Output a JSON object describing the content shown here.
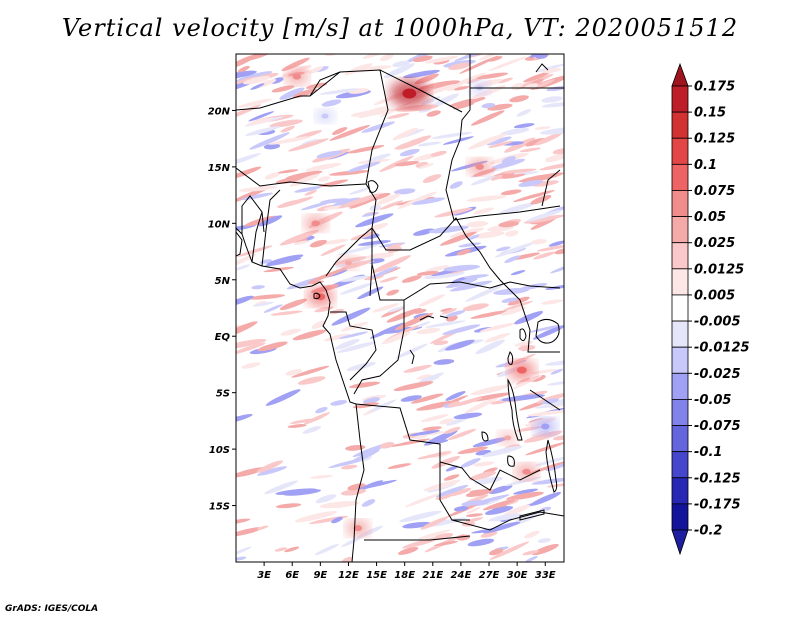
{
  "title": "Vertical velocity [m/s] at 1000hPa, VT: 2020051512",
  "credit": "GrADS: IGES/COLA",
  "map": {
    "lon_range": [
      0,
      35
    ],
    "lat_range": [
      -20,
      25
    ],
    "lon_ticks": [
      {
        "lon": 3,
        "label": "3E"
      },
      {
        "lon": 6,
        "label": "6E"
      },
      {
        "lon": 9,
        "label": "9E"
      },
      {
        "lon": 12,
        "label": "12E"
      },
      {
        "lon": 15,
        "label": "15E"
      },
      {
        "lon": 18,
        "label": "18E"
      },
      {
        "lon": 21,
        "label": "21E"
      },
      {
        "lon": 24,
        "label": "24E"
      },
      {
        "lon": 27,
        "label": "27E"
      },
      {
        "lon": 30,
        "label": "30E"
      },
      {
        "lon": 33,
        "label": "33E"
      }
    ],
    "lat_ticks": [
      {
        "lat": 20,
        "label": "20N"
      },
      {
        "lat": 15,
        "label": "15N"
      },
      {
        "lat": 10,
        "label": "10N"
      },
      {
        "lat": 5,
        "label": "5N"
      },
      {
        "lat": 0,
        "label": "EQ"
      },
      {
        "lat": -5,
        "label": "5S"
      },
      {
        "lat": -10,
        "label": "10S"
      },
      {
        "lat": -15,
        "label": "15S"
      }
    ],
    "hotspots": [
      {
        "lon": 18.5,
        "lat": 21.5,
        "level": 0.15
      },
      {
        "lon": 9.0,
        "lat": 3.5,
        "level": 0.075
      },
      {
        "lon": 30.5,
        "lat": -3.0,
        "level": 0.075
      },
      {
        "lon": 31.0,
        "lat": -12.0,
        "level": 0.05
      },
      {
        "lon": 13.0,
        "lat": -17.0,
        "level": 0.05
      },
      {
        "lon": 8.5,
        "lat": 10.0,
        "level": 0.05
      },
      {
        "lon": 26.0,
        "lat": 15.0,
        "level": 0.05
      },
      {
        "lon": 6.5,
        "lat": 23.0,
        "level": 0.05
      },
      {
        "lon": 12.0,
        "lat": 6.5,
        "level": 0.025
      },
      {
        "lon": 29.0,
        "lat": -9.0,
        "level": 0.025
      },
      {
        "lon": 33.0,
        "lat": -8.0,
        "level": -0.05
      },
      {
        "lon": 26.0,
        "lat": 22.0,
        "level": -0.025
      },
      {
        "lon": 9.5,
        "lat": 19.5,
        "level": -0.025
      }
    ]
  },
  "colorbar": {
    "levels": [
      {
        "label": "0.175",
        "color": "#a0141e"
      },
      {
        "label": "0.15",
        "color": "#be1e28"
      },
      {
        "label": "0.125",
        "color": "#d23232"
      },
      {
        "label": "0.1",
        "color": "#e24646"
      },
      {
        "label": "0.075",
        "color": "#ee6464"
      },
      {
        "label": "0.05",
        "color": "#f08c8c"
      },
      {
        "label": "0.025",
        "color": "#f5aaaa"
      },
      {
        "label": "0.0125",
        "color": "#fac8c8"
      },
      {
        "label": "0.005",
        "color": "#fde6e6"
      },
      {
        "label": "-0.005",
        "color": "#ffffff"
      },
      {
        "label": "-0.0125",
        "color": "#e6e6fa"
      },
      {
        "label": "-0.025",
        "color": "#c8c8fa"
      },
      {
        "label": "-0.05",
        "color": "#a0a0f5"
      },
      {
        "label": "-0.075",
        "color": "#8282eb"
      },
      {
        "label": "-0.1",
        "color": "#6464dc"
      },
      {
        "label": "-0.125",
        "color": "#4646cd"
      },
      {
        "label": "-0.175",
        "color": "#2828b4"
      },
      {
        "label": "-0.2",
        "color": "#14149b"
      }
    ],
    "top_color": "#a0141e",
    "bottom_color": "#1e1ea0"
  }
}
